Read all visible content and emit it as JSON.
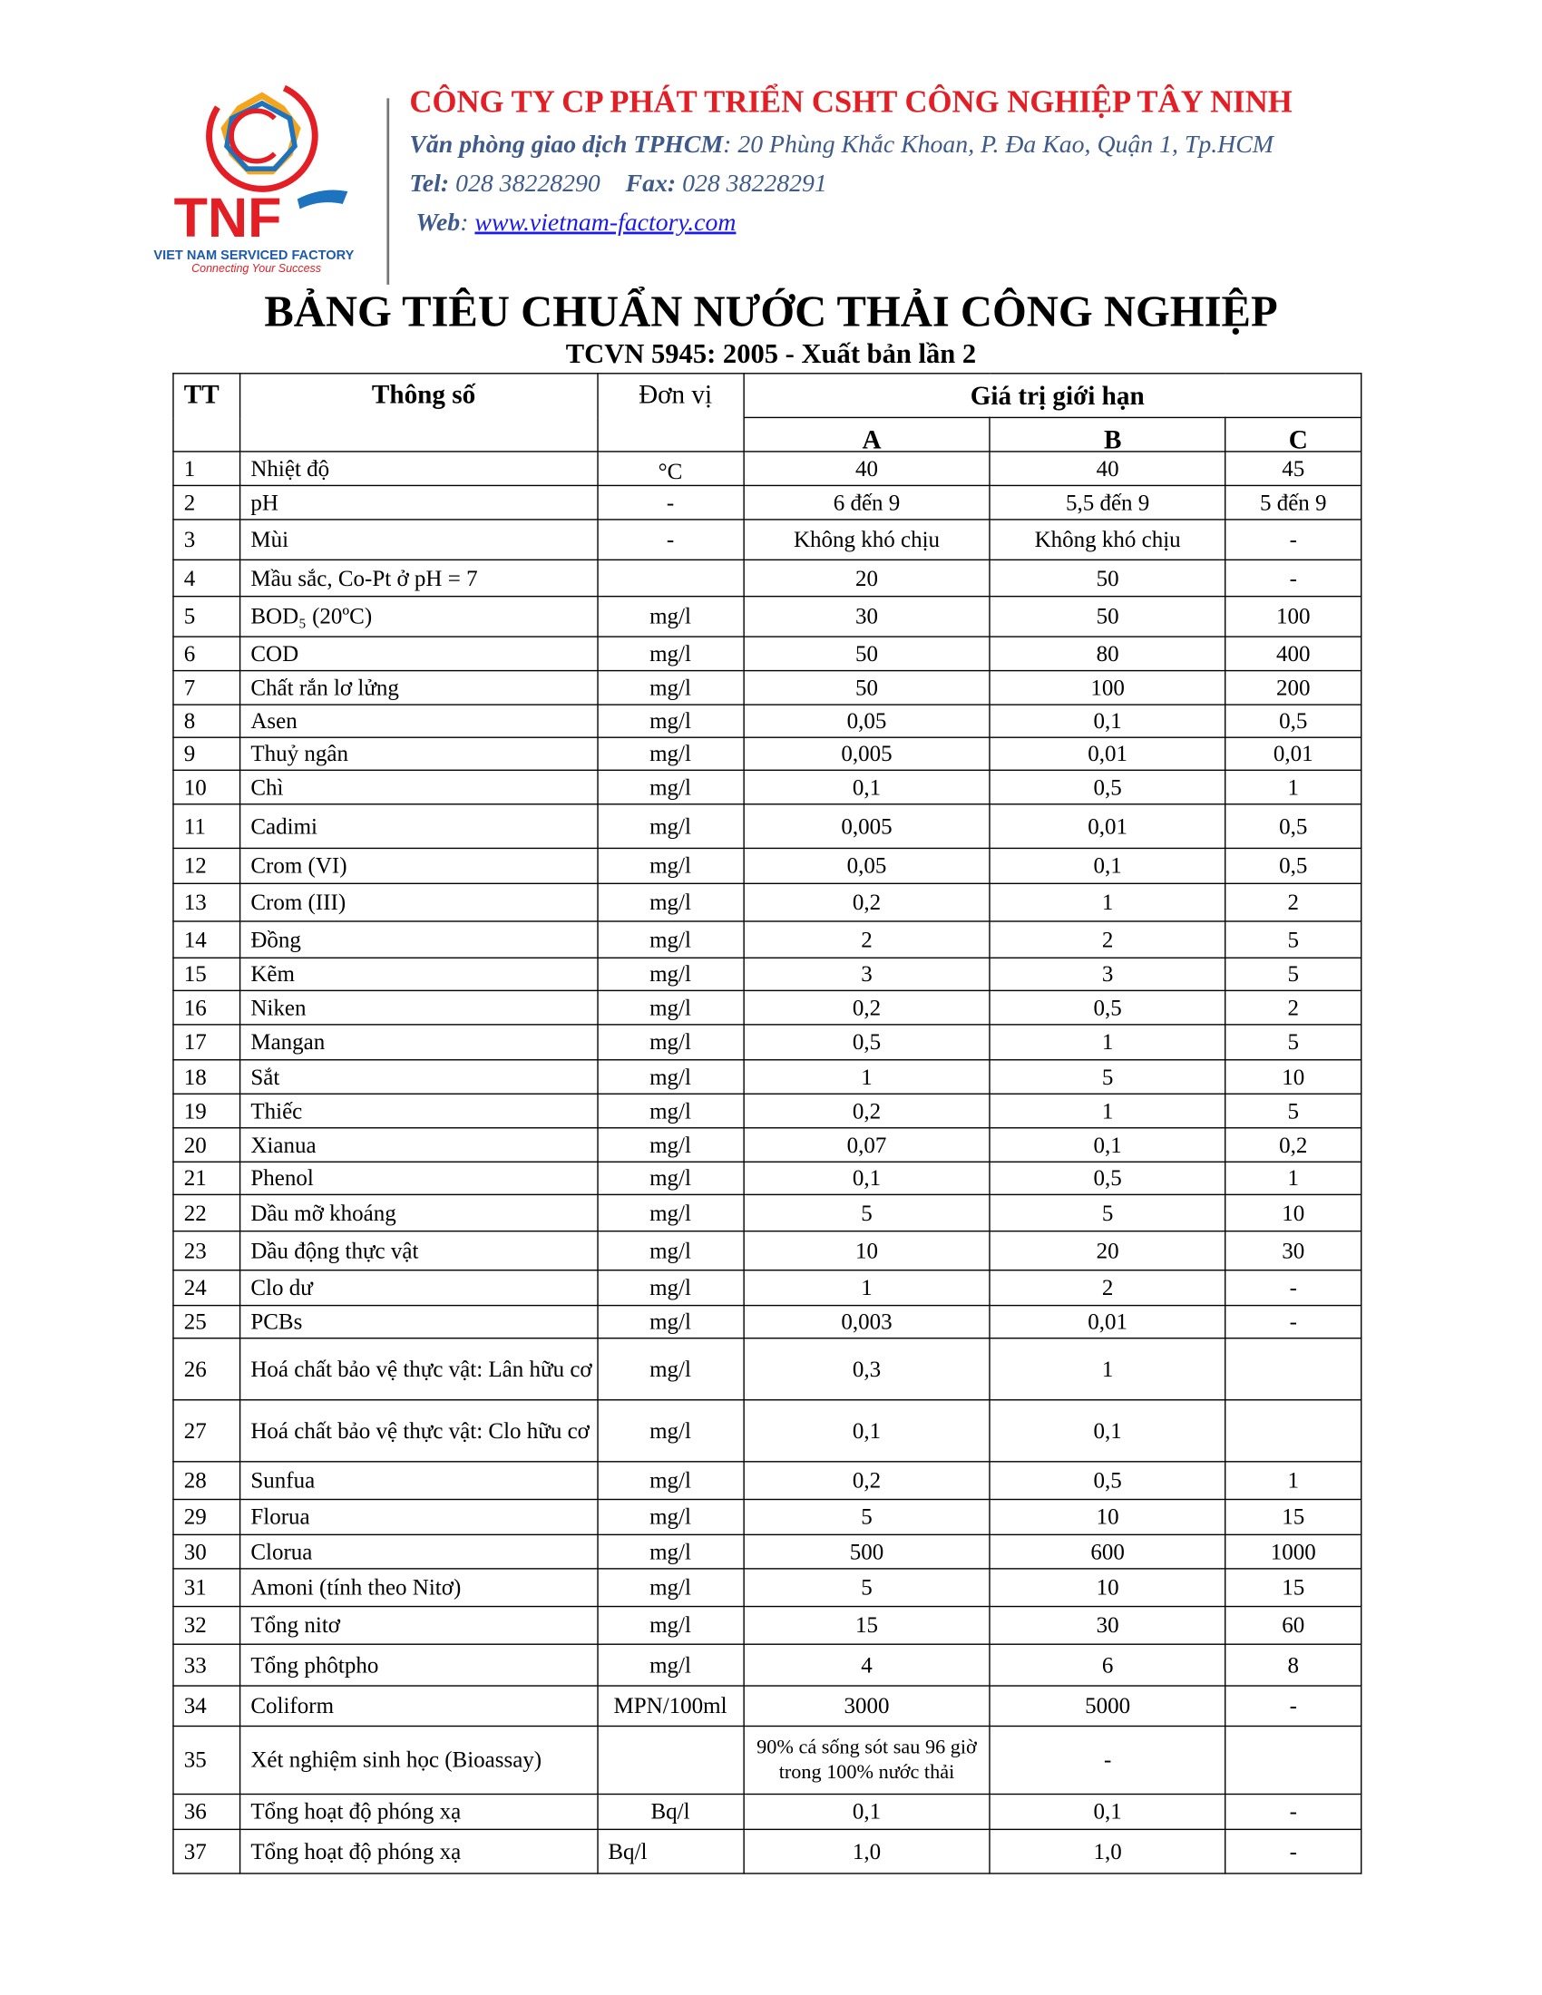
{
  "header": {
    "logo": {
      "brand": "TNF",
      "tagline": "VIET NAM SERVICED FACTORY",
      "slogan": "Connecting Your Success"
    },
    "company": "CÔNG TY CP PHÁT TRIỂN CSHT CÔNG NGHIỆP TÂY NINH",
    "office_label": "Văn phòng giao dịch TPHCM",
    "office_address": ": 20 Phùng Khắc Khoan, P. Đa Kao, Quận 1, Tp.HCM",
    "tel_label": "Tel:",
    "tel": "028 38228290",
    "fax_label": "Fax:",
    "fax": "028 38228291",
    "web_label": "Web",
    "web": "www.vietnam-factory.com"
  },
  "title": "BẢNG TIÊU CHUẨN NƯỚC THẢI CÔNG NGHIỆP",
  "subtitle": "TCVN 5945: 2005 - Xuất bản lần 2",
  "table": {
    "headers": {
      "tt": "TT",
      "param": "Thông số",
      "unit": "Đơn vị",
      "limit": "Giá trị giới hạn",
      "a": "A",
      "b": "B",
      "c": "C"
    },
    "rows": [
      [
        "1",
        "Nhiệt độ",
        "°C",
        "40",
        "40",
        "45"
      ],
      [
        "2",
        "pH",
        "-",
        "6 đến 9",
        "5,5 đến 9",
        "5  đến 9"
      ],
      [
        "3",
        "Mùi",
        "-",
        "Không  khó chịu",
        "Không  khó chịu",
        "-"
      ],
      [
        "4",
        "Mầu sắc, Co-Pt ở pH = 7",
        "",
        "20",
        "50",
        "-"
      ],
      [
        "5",
        "BOD₅ (20ºC)",
        "mg/l",
        "30",
        "50",
        "100"
      ],
      [
        "6",
        "COD",
        "mg/l",
        "50",
        "80",
        "400"
      ],
      [
        "7",
        "Chất rắn lơ lửng",
        "mg/l",
        "50",
        "100",
        "200"
      ],
      [
        "8",
        "Asen",
        "mg/l",
        "0,05",
        "0,1",
        "0,5"
      ],
      [
        "9",
        "Thuỷ ngân",
        "mg/l",
        "0,005",
        "0,01",
        "0,01"
      ],
      [
        "10",
        "Chì",
        "mg/l",
        "0,1",
        "0,5",
        "1"
      ],
      [
        "11",
        "Cadimi",
        "mg/l",
        "0,005",
        "0,01",
        "0,5"
      ],
      [
        "12",
        "Crom (VI)",
        "mg/l",
        "0,05",
        "0,1",
        "0,5"
      ],
      [
        "13",
        "Crom (III)",
        "mg/l",
        "0,2",
        "1",
        "2"
      ],
      [
        "14",
        "Đồng",
        "mg/l",
        "2",
        "2",
        "5"
      ],
      [
        "15",
        "Kẽm",
        "mg/l",
        "3",
        "3",
        "5"
      ],
      [
        "16",
        "Niken",
        "mg/l",
        "0,2",
        "0,5",
        "2"
      ],
      [
        "17",
        "Mangan",
        "mg/l",
        "0,5",
        "1",
        "5"
      ],
      [
        "18",
        "Sắt",
        "mg/l",
        "1",
        "5",
        "10"
      ],
      [
        "19",
        "Thiếc",
        "mg/l",
        "0,2",
        "1",
        "5"
      ],
      [
        "20",
        "Xianua",
        "mg/l",
        "0,07",
        "0,1",
        "0,2"
      ],
      [
        "21",
        "Phenol",
        "mg/l",
        "0,1",
        "0,5",
        "1"
      ],
      [
        "22",
        "Dầu mỡ khoáng",
        "mg/l",
        "5",
        "5",
        "10"
      ],
      [
        "23",
        "Dầu động thực vật",
        "mg/l",
        "10",
        "20",
        "30"
      ],
      [
        "24",
        "Clo dư",
        "mg/l",
        "1",
        "2",
        "-"
      ],
      [
        "25",
        "PCBs",
        "mg/l",
        "0,003",
        "0,01",
        "-"
      ],
      [
        "26",
        "Hoá chất bảo vệ thực vật: Lân hữu cơ",
        "mg/l",
        "0,3",
        "1",
        ""
      ],
      [
        "27",
        "Hoá chất bảo vệ thực vật: Clo hữu cơ",
        "mg/l",
        "0,1",
        "0,1",
        ""
      ],
      [
        "28",
        "Sunfua",
        "mg/l",
        "0,2",
        "0,5",
        "1"
      ],
      [
        "29",
        "Florua",
        "mg/l",
        "5",
        "10",
        "15"
      ],
      [
        "30",
        "Clorua",
        "mg/l",
        "500",
        "600",
        "1000"
      ],
      [
        "31",
        "Amoni (tính theo Nitơ)",
        "mg/l",
        "5",
        "10",
        "15"
      ],
      [
        "32",
        "Tổng nitơ",
        "mg/l",
        "15",
        "30",
        "60"
      ],
      [
        "33",
        "Tổng phôtpho",
        "mg/l",
        "4",
        "6",
        "8"
      ],
      [
        "34",
        "Coliform",
        "MPN/100ml",
        "3000",
        "5000",
        "-"
      ],
      [
        "35",
        "Xét nghiệm sinh học (Bioassay)",
        "",
        "90% cá sống sót sau 96 giờ trong 100% nước thải",
        "-",
        ""
      ],
      [
        "36",
        "Tổng hoạt độ phóng  xạ",
        "Bq/l",
        "0,1",
        "0,1",
        "-"
      ],
      [
        "37",
        "Tổng hoạt độ phóng  xạ",
        "Bq/l",
        "1,0",
        "1,0",
        "-"
      ]
    ]
  }
}
